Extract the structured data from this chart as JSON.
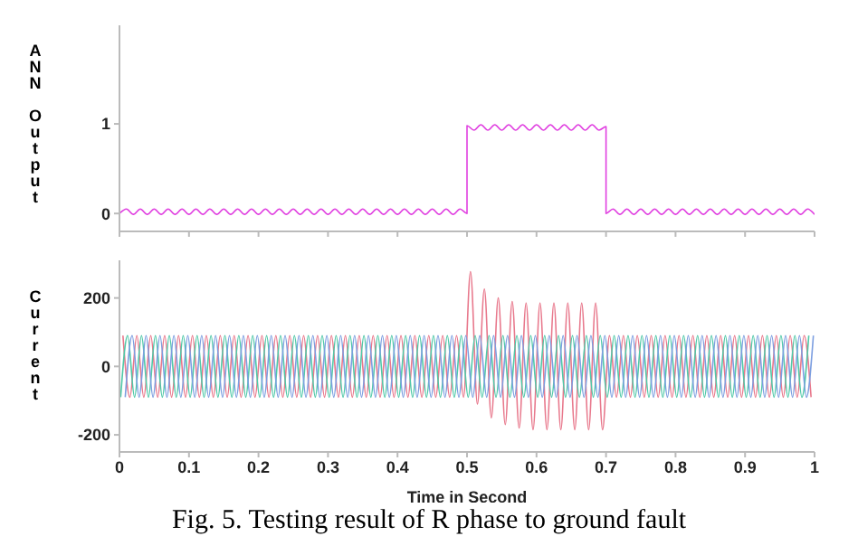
{
  "chart_data": [
    {
      "type": "line",
      "ylabel": "ANN Output",
      "xlim": [
        0,
        1
      ],
      "xticks": [
        0,
        0.1,
        0.2,
        0.3,
        0.4,
        0.5,
        0.6,
        0.7,
        0.8,
        0.9,
        1
      ],
      "ylim": [
        -0.2,
        2.1
      ],
      "yticks": [
        0,
        1
      ],
      "tick_labels": "y",
      "series": [
        {
          "color": "#e040e0",
          "x": [
            0,
            0.01,
            0.02,
            0.03,
            0.04,
            0.05,
            0.06,
            0.07,
            0.08,
            0.09,
            0.1,
            0.11,
            0.12,
            0.13,
            0.14,
            0.15,
            0.16,
            0.17,
            0.18,
            0.19,
            0.2,
            0.21,
            0.22,
            0.23,
            0.24,
            0.25,
            0.26,
            0.27,
            0.28,
            0.29,
            0.3,
            0.31,
            0.32,
            0.33,
            0.34,
            0.35,
            0.36,
            0.37,
            0.38,
            0.39,
            0.4,
            0.41,
            0.42,
            0.43,
            0.44,
            0.45,
            0.46,
            0.47,
            0.48,
            0.49,
            0.5,
            0.5,
            0.51,
            0.52,
            0.53,
            0.54,
            0.55,
            0.56,
            0.57,
            0.58,
            0.59,
            0.6,
            0.61,
            0.62,
            0.63,
            0.64,
            0.65,
            0.66,
            0.67,
            0.68,
            0.69,
            0.7,
            0.7,
            0.71,
            0.72,
            0.73,
            0.74,
            0.75,
            0.76,
            0.77,
            0.78,
            0.79,
            0.8,
            0.81,
            0.82,
            0.83,
            0.84,
            0.85,
            0.86,
            0.87,
            0.88,
            0.89,
            0.9,
            0.91,
            0.92,
            0.93,
            0.94,
            0.95,
            0.96,
            0.97,
            0.98,
            0.99,
            1
          ],
          "values": [
            0,
            0.05,
            -0.01,
            0.05,
            -0.01,
            0.05,
            -0.01,
            0.05,
            -0.01,
            0.05,
            -0.01,
            0.05,
            -0.01,
            0.05,
            -0.01,
            0.05,
            -0.01,
            0.05,
            -0.01,
            0.05,
            -0.01,
            0.05,
            -0.01,
            0.05,
            -0.01,
            0.05,
            -0.01,
            0.05,
            -0.01,
            0.05,
            -0.01,
            0.05,
            -0.01,
            0.05,
            -0.01,
            0.05,
            -0.01,
            0.05,
            -0.01,
            0.05,
            -0.01,
            0.05,
            -0.01,
            0.05,
            -0.01,
            0.05,
            -0.01,
            0.05,
            -0.01,
            0.05,
            0,
            0.98,
            0.93,
            0.99,
            0.93,
            0.99,
            0.93,
            0.99,
            0.93,
            0.99,
            0.93,
            0.99,
            0.93,
            0.99,
            0.93,
            0.99,
            0.93,
            0.99,
            0.93,
            0.99,
            0.93,
            0.97,
            0,
            0.05,
            -0.01,
            0.05,
            -0.01,
            0.05,
            -0.01,
            0.05,
            -0.01,
            0.05,
            -0.01,
            0.05,
            -0.01,
            0.05,
            -0.01,
            0.05,
            -0.01,
            0.05,
            -0.01,
            0.05,
            -0.01,
            0.05,
            -0.01,
            0.05,
            -0.01,
            0.05,
            -0.01,
            0.05,
            -0.01,
            0.05,
            -0.01
          ]
        }
      ]
    },
    {
      "type": "line",
      "ylabel": "Current",
      "xlabel": "Time in Second",
      "xlim": [
        0,
        1
      ],
      "xticks": [
        0,
        0.1,
        0.2,
        0.3,
        0.4,
        0.5,
        0.6,
        0.7,
        0.8,
        0.9,
        1
      ],
      "ylim": [
        -250,
        310
      ],
      "yticks": [
        -200,
        0,
        200
      ],
      "annotations": [
        "Fig. 5. Testing result of R phase to ground fault"
      ],
      "series": [
        {
          "color": "#e8788c",
          "x": [
            0.005,
            0.015,
            0.025,
            0.035,
            0.045,
            0.055,
            0.065,
            0.075,
            0.085,
            0.095,
            0.105,
            0.115,
            0.125,
            0.135,
            0.145,
            0.155,
            0.165,
            0.175,
            0.185,
            0.195,
            0.205,
            0.215,
            0.225,
            0.235,
            0.245,
            0.255,
            0.265,
            0.275,
            0.285,
            0.295,
            0.305,
            0.315,
            0.325,
            0.335,
            0.345,
            0.355,
            0.365,
            0.375,
            0.385,
            0.395,
            0.405,
            0.415,
            0.425,
            0.435,
            0.445,
            0.455,
            0.465,
            0.475,
            0.485,
            0.495,
            0.505,
            0.515,
            0.525,
            0.535,
            0.545,
            0.555,
            0.565,
            0.575,
            0.585,
            0.595,
            0.605,
            0.615,
            0.625,
            0.635,
            0.645,
            0.655,
            0.665,
            0.675,
            0.685,
            0.695,
            0.705,
            0.715,
            0.725,
            0.735,
            0.745,
            0.755,
            0.765,
            0.775,
            0.785,
            0.795,
            0.805,
            0.815,
            0.825,
            0.835,
            0.845,
            0.855,
            0.865,
            0.875,
            0.885,
            0.895,
            0.905,
            0.915,
            0.925,
            0.935,
            0.945,
            0.955,
            0.965,
            0.975,
            0.985,
            0.995
          ],
          "values": [
            90,
            -90,
            90,
            -90,
            90,
            -90,
            90,
            -90,
            90,
            -90,
            90,
            -90,
            90,
            -90,
            90,
            -90,
            90,
            -90,
            90,
            -90,
            90,
            -90,
            90,
            -90,
            90,
            -90,
            90,
            -90,
            90,
            -90,
            90,
            -90,
            90,
            -90,
            90,
            -90,
            90,
            -90,
            90,
            -90,
            90,
            -90,
            90,
            -90,
            90,
            -90,
            90,
            -90,
            90,
            -90,
            277,
            -110,
            226,
            -150,
            200,
            -170,
            190,
            -180,
            185,
            -185,
            185,
            -185,
            185,
            -185,
            185,
            -185,
            185,
            -185,
            185,
            -185,
            90,
            -90,
            90,
            -90,
            90,
            -90,
            90,
            -90,
            90,
            -90,
            90,
            -90,
            90,
            -90,
            90,
            -90,
            90,
            -90,
            90,
            -90,
            90,
            -90,
            90,
            -90,
            90,
            -90,
            90,
            -90,
            90,
            -90
          ]
        },
        {
          "color": "#50c8a8",
          "x": [
            0.0017,
            0.0117,
            0.0217,
            0.0317,
            0.0417,
            0.0517,
            0.0617,
            0.0717,
            0.0817,
            0.0917,
            0.1017,
            0.1117,
            0.1217,
            0.1317,
            0.1417,
            0.1517,
            0.1617,
            0.1717,
            0.1817,
            0.1917,
            0.2017,
            0.2117,
            0.2217,
            0.2317,
            0.2417,
            0.2517,
            0.2617,
            0.2717,
            0.2817,
            0.2917,
            0.3017,
            0.3117,
            0.3217,
            0.3317,
            0.3417,
            0.3517,
            0.3617,
            0.3717,
            0.3817,
            0.3917,
            0.4017,
            0.4117,
            0.4217,
            0.4317,
            0.4417,
            0.4517,
            0.4617,
            0.4717,
            0.4817,
            0.4917,
            0.5017,
            0.5117,
            0.5217,
            0.5317,
            0.5417,
            0.5517,
            0.5617,
            0.5717,
            0.5817,
            0.5917,
            0.6017,
            0.6117,
            0.6217,
            0.6317,
            0.6417,
            0.6517,
            0.6617,
            0.6717,
            0.6817,
            0.6917,
            0.7017,
            0.7117,
            0.7217,
            0.7317,
            0.7417,
            0.7517,
            0.7617,
            0.7717,
            0.7817,
            0.7917,
            0.8017,
            0.8117,
            0.8217,
            0.8317,
            0.8417,
            0.8517,
            0.8617,
            0.8717,
            0.8817,
            0.8917,
            0.9017,
            0.9117,
            0.9217,
            0.9317,
            0.9417,
            0.9517,
            0.9617,
            0.9717,
            0.9817,
            0.9917
          ],
          "values": [
            -90,
            90,
            -90,
            90,
            -90,
            90,
            -90,
            90,
            -90,
            90,
            -90,
            90,
            -90,
            90,
            -90,
            90,
            -90,
            90,
            -90,
            90,
            -90,
            90,
            -90,
            90,
            -90,
            90,
            -90,
            90,
            -90,
            90,
            -90,
            90,
            -90,
            90,
            -90,
            90,
            -90,
            90,
            -90,
            90,
            -90,
            90,
            -90,
            90,
            -90,
            90,
            -90,
            90,
            -90,
            90,
            -90,
            90,
            -90,
            90,
            -90,
            90,
            -90,
            90,
            -90,
            90,
            -90,
            90,
            -90,
            90,
            -90,
            90,
            -90,
            90,
            -90,
            90,
            -90,
            90,
            -90,
            90,
            -90,
            90,
            -90,
            90,
            -90,
            90,
            -90,
            90,
            -90,
            90,
            -90,
            90,
            -90,
            90,
            -90,
            90,
            -90,
            90,
            -90,
            90,
            -90,
            90,
            -90,
            90,
            -90,
            90
          ]
        },
        {
          "color": "#7c9ee0",
          "x": [
            0.0083,
            0.0183,
            0.0283,
            0.0383,
            0.0483,
            0.0583,
            0.0683,
            0.0783,
            0.0883,
            0.0983,
            0.1083,
            0.1183,
            0.1283,
            0.1383,
            0.1483,
            0.1583,
            0.1683,
            0.1783,
            0.1883,
            0.1983,
            0.2083,
            0.2183,
            0.2283,
            0.2383,
            0.2483,
            0.2583,
            0.2683,
            0.2783,
            0.2883,
            0.2983,
            0.3083,
            0.3183,
            0.3283,
            0.3383,
            0.3483,
            0.3583,
            0.3683,
            0.3783,
            0.3883,
            0.3983,
            0.4083,
            0.4183,
            0.4283,
            0.4383,
            0.4483,
            0.4583,
            0.4683,
            0.4783,
            0.4883,
            0.4983,
            0.5083,
            0.5183,
            0.5283,
            0.5383,
            0.5483,
            0.5583,
            0.5683,
            0.5783,
            0.5883,
            0.5983,
            0.6083,
            0.6183,
            0.6283,
            0.6383,
            0.6483,
            0.6583,
            0.6683,
            0.6783,
            0.6883,
            0.6983,
            0.7083,
            0.7183,
            0.7283,
            0.7383,
            0.7483,
            0.7583,
            0.7683,
            0.7783,
            0.7883,
            0.7983,
            0.8083,
            0.8183,
            0.8283,
            0.8383,
            0.8483,
            0.8583,
            0.8683,
            0.8783,
            0.8883,
            0.8983,
            0.9083,
            0.9183,
            0.9283,
            0.9383,
            0.9483,
            0.9583,
            0.9683,
            0.9783,
            0.9883,
            0.9983
          ],
          "values": [
            -90,
            90,
            -90,
            90,
            -90,
            90,
            -90,
            90,
            -90,
            90,
            -90,
            90,
            -90,
            90,
            -90,
            90,
            -90,
            90,
            -90,
            90,
            -90,
            90,
            -90,
            90,
            -90,
            90,
            -90,
            90,
            -90,
            90,
            -90,
            90,
            -90,
            90,
            -90,
            90,
            -90,
            90,
            -90,
            90,
            -90,
            90,
            -90,
            90,
            -90,
            90,
            -90,
            90,
            -90,
            90,
            -90,
            90,
            -90,
            90,
            -90,
            90,
            -90,
            90,
            -90,
            90,
            -90,
            90,
            -90,
            90,
            -90,
            90,
            -90,
            90,
            -90,
            90,
            -90,
            90,
            -90,
            90,
            -90,
            90,
            -90,
            90,
            -90,
            90,
            -90,
            90,
            -90,
            90,
            -90,
            90,
            -90,
            90,
            -90,
            90,
            -90,
            90,
            -90,
            90,
            -90,
            90,
            -90,
            90,
            -90,
            90
          ]
        }
      ]
    }
  ]
}
